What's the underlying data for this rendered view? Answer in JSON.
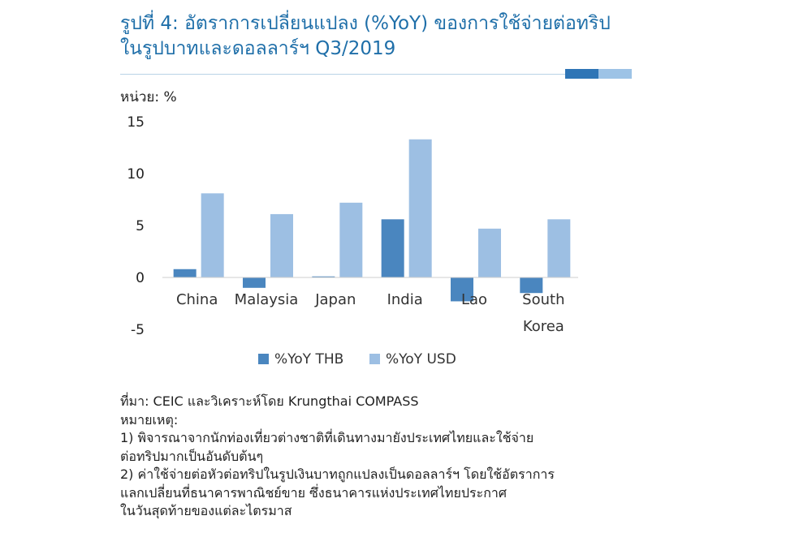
{
  "header": {
    "title_line1": "รูปที่ 4: อัตราการเปลี่ยนแปลง (%YoY) ของการใช้จ่ายต่อทริป",
    "title_line2": "ในรูปบาทและดอลลาร์ฯ Q3/2019"
  },
  "unit_label": "หน่วย: %",
  "colors": {
    "thb": "#4a86bf",
    "usd": "#9dbfe3",
    "title": "#1f6fa9"
  },
  "chart_data": {
    "type": "bar",
    "title": "รูปที่ 4: อัตราการเปลี่ยนแปลง (%YoY) ของการใช้จ่ายต่อทริป ในรูปบาทและดอลลาร์ฯ Q3/2019",
    "ylabel": "หน่วย: %",
    "xlabel": "",
    "categories": [
      "China",
      "Malaysia",
      "Japan",
      "India",
      "Lao",
      "South Korea"
    ],
    "category_lines": [
      [
        "China"
      ],
      [
        "Malaysia"
      ],
      [
        "Japan"
      ],
      [
        "India"
      ],
      [
        "Lao"
      ],
      [
        "South",
        "Korea"
      ]
    ],
    "series": [
      {
        "name": "%YoY THB",
        "values": [
          0.8,
          -1.0,
          0.1,
          5.6,
          -2.3,
          -1.5
        ]
      },
      {
        "name": "%YoY USD",
        "values": [
          8.1,
          6.1,
          7.2,
          13.3,
          4.7,
          5.6
        ]
      }
    ],
    "ylim": [
      -5,
      15
    ],
    "yticks": [
      -5,
      0,
      5,
      10,
      15
    ],
    "grid": false,
    "legend": "bottom"
  },
  "notes": {
    "source": "ที่มา: CEIC และวิเคราะห์โดย Krungthai COMPASS",
    "heading": "หมายเหตุ:",
    "lines": [
      "1) พิจารณาจากนักท่องเที่ยวต่างชาติที่เดินทางมายังประเทศไทยและใช้จ่าย",
      "ต่อทริปมากเป็นอันดับต้นๆ",
      "2) ค่าใช้จ่ายต่อหัวต่อทริปในรูปเงินบาทถูกแปลงเป็นดอลลาร์ฯ โดยใช้อัตราการ",
      "แลกเปลี่ยนที่ธนาคารพาณิชย์ขาย ซึ่งธนาคารแห่งประเทศไทยประกาศ",
      "ในวันสุดท้ายของแต่ละไตรมาส"
    ]
  }
}
